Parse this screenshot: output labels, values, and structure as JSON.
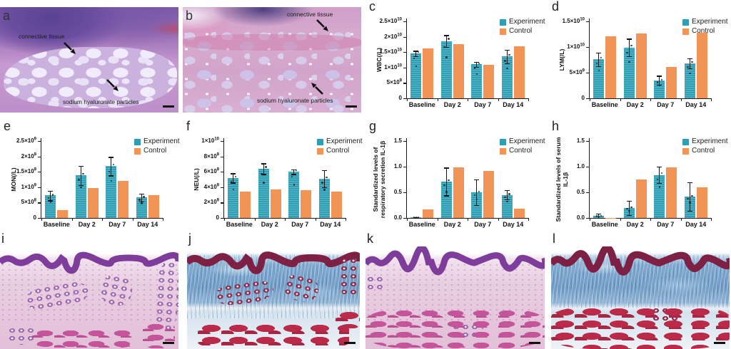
{
  "legend": {
    "experiment": "Experiment",
    "control": "Control"
  },
  "colors": {
    "experiment": "#2e9fb4",
    "control": "#f29455",
    "axis": "#1b1b1b"
  },
  "histology": {
    "a": {
      "letter": "a",
      "annotations": [
        "connective tissue",
        "sodium hyaluronate particles"
      ]
    },
    "b": {
      "letter": "b",
      "annotations": [
        "connective tissue",
        "sodium hyaluronate particles"
      ]
    },
    "i": {
      "letter": "i"
    },
    "j": {
      "letter": "j"
    },
    "k": {
      "letter": "k"
    },
    "l": {
      "letter": "l"
    }
  },
  "chart_data": [
    {
      "type": "bar",
      "panel": "c",
      "ylabel": "WBC(/L)",
      "categories": [
        "Baseline",
        "Day 2",
        "Day 7",
        "Day 14"
      ],
      "series": [
        {
          "name": "Experiment",
          "values": [
            14500000000.0,
            18600000000.0,
            11000000000.0,
            13600000000.0
          ],
          "errors": [
            900000000.0,
            1900000000.0,
            800000000.0,
            2200000000.0
          ]
        },
        {
          "name": "Control",
          "values": [
            16100000000.0,
            17600000000.0,
            10800000000.0,
            17000000000.0
          ]
        }
      ],
      "ylim": [
        0,
        25000000000.0
      ],
      "legend_position": "top-right",
      "grid": false,
      "yticks": [
        {
          "v": 0,
          "label": "0"
        },
        {
          "v": 5000000000.0,
          "label": "5×10^9"
        },
        {
          "v": 10000000000.0,
          "label": "1×10^10"
        },
        {
          "v": 15000000000.0,
          "label": "1.5×10^10"
        },
        {
          "v": 20000000000.0,
          "label": "2×10^10"
        },
        {
          "v": 25000000000.0,
          "label": "2.5×10^10"
        }
      ]
    },
    {
      "type": "bar",
      "panel": "d",
      "ylabel": "LYM(/L)",
      "categories": [
        "Baseline",
        "Day 2",
        "Day 7",
        "Day 14"
      ],
      "series": [
        {
          "name": "Experiment",
          "values": [
            7600000000.0,
            9900000000.0,
            3500000000.0,
            6800000000.0
          ],
          "errors": [
            1300000000.0,
            1700000000.0,
            900000000.0,
            1000000000.0
          ]
        },
        {
          "name": "Control",
          "values": [
            12100000000.0,
            12600000000.0,
            6100000000.0,
            12800000000.0
          ]
        }
      ],
      "ylim": [
        0,
        15000000000.0
      ],
      "legend_position": "top-right",
      "grid": false,
      "yticks": [
        {
          "v": 0,
          "label": "0"
        },
        {
          "v": 5000000000.0,
          "label": "5×10^9"
        },
        {
          "v": 10000000000.0,
          "label": "1×10^10"
        },
        {
          "v": 15000000000.0,
          "label": "1.5×10^10"
        }
      ]
    },
    {
      "type": "bar",
      "panel": "e",
      "ylabel": "MON(/L)",
      "categories": [
        "Baseline",
        "Day 2",
        "Day 7",
        "Day 14"
      ],
      "series": [
        {
          "name": "Experiment",
          "values": [
            730000000.0,
            1380000000.0,
            1680000000.0,
            660000000.0
          ],
          "errors": [
            160000000.0,
            310000000.0,
            300000000.0,
            130000000.0
          ]
        },
        {
          "name": "Control",
          "values": [
            260000000.0,
            970000000.0,
            1210000000.0,
            740000000.0
          ]
        }
      ],
      "ylim": [
        0,
        2500000000.0
      ],
      "legend_position": "top-right",
      "grid": false,
      "yticks": [
        {
          "v": 0,
          "label": "0"
        },
        {
          "v": 500000000.0,
          "label": "5×10^8"
        },
        {
          "v": 1000000000.0,
          "label": "1×10^9"
        },
        {
          "v": 1500000000.0,
          "label": "1.5×10^9"
        },
        {
          "v": 2000000000.0,
          "label": "2×10^9"
        },
        {
          "v": 2500000000.0,
          "label": "2.5×10^9"
        }
      ]
    },
    {
      "type": "bar",
      "panel": "f",
      "ylabel": "NEU(/L)",
      "categories": [
        "Baseline",
        "Day 2",
        "Day 7",
        "Day 14"
      ],
      "series": [
        {
          "name": "Experiment",
          "values": [
            5200000000.0,
            6400000000.0,
            6000000000.0,
            5100000000.0
          ],
          "errors": [
            600000000.0,
            700000000.0,
            300000000.0,
            1100000000.0
          ]
        },
        {
          "name": "Control",
          "values": [
            3400000000.0,
            3750000000.0,
            3650000000.0,
            3450000000.0
          ]
        }
      ],
      "ylim": [
        0,
        10000000000.0
      ],
      "legend_position": "top-right",
      "grid": false,
      "yticks": [
        {
          "v": 0,
          "label": "0"
        },
        {
          "v": 2000000000.0,
          "label": "2×10^9"
        },
        {
          "v": 4000000000.0,
          "label": "4×10^9"
        },
        {
          "v": 6000000000.0,
          "label": "6×10^9"
        },
        {
          "v": 8000000000.0,
          "label": "8×10^9"
        },
        {
          "v": 10000000000.0,
          "label": "1×10^10"
        }
      ]
    },
    {
      "type": "bar",
      "panel": "g",
      "ylabel": "Standardized levels of respiratory secretion IL-1β",
      "categories": [
        "Baseline",
        "Day 2",
        "Day 7",
        "Day 14"
      ],
      "series": [
        {
          "name": "Experiment",
          "values": [
            0.01,
            0.71,
            0.5,
            0.45
          ],
          "errors": [
            0.01,
            0.27,
            0.25,
            0.09
          ]
        },
        {
          "name": "Control",
          "values": [
            0.16,
            0.98,
            0.91,
            0.18
          ]
        }
      ],
      "ylim": [
        0,
        1.5
      ],
      "legend_position": "top-right",
      "grid": false,
      "yticks": [
        {
          "v": 0,
          "label": "0.0"
        },
        {
          "v": 0.5,
          "label": "0.5"
        },
        {
          "v": 1.0,
          "label": "1.0"
        },
        {
          "v": 1.5,
          "label": "1.5"
        }
      ]
    },
    {
      "type": "bar",
      "panel": "h",
      "ylabel": "Standardized levels of serum IL-1β",
      "categories": [
        "Baseline",
        "Day 2",
        "Day 7",
        "Day 14"
      ],
      "series": [
        {
          "name": "Experiment",
          "values": [
            0.04,
            0.2,
            0.84,
            0.42
          ],
          "errors": [
            0.05,
            0.14,
            0.16,
            0.28
          ]
        },
        {
          "name": "Control",
          "values": [
            0.005,
            0.75,
            0.98,
            0.6
          ]
        }
      ],
      "ylim": [
        0,
        1.5
      ],
      "legend_position": "top-right",
      "grid": false,
      "yticks": [
        {
          "v": 0,
          "label": "0.0"
        },
        {
          "v": 0.5,
          "label": "0.5"
        },
        {
          "v": 1.0,
          "label": "1.0"
        },
        {
          "v": 1.5,
          "label": "1.5"
        }
      ]
    }
  ]
}
